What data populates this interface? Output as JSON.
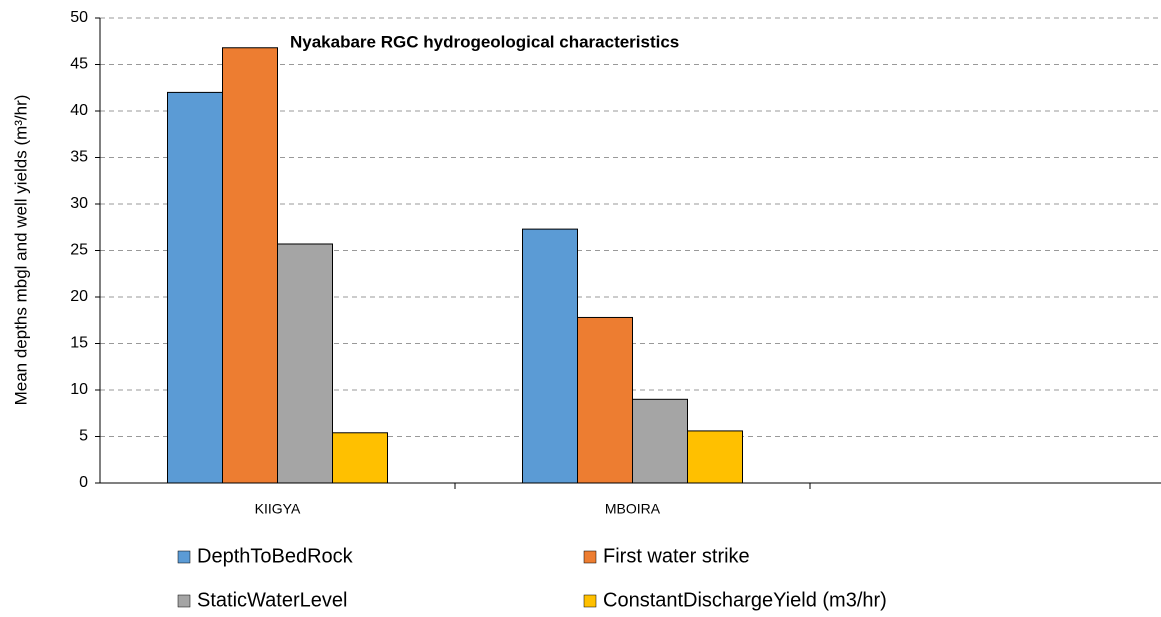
{
  "chart_data": {
    "type": "bar",
    "title": "Nyakabare RGC hydrogeological characteristics",
    "y_label": "Mean depths mbgl and well yields (m³/hr)",
    "categories": [
      "KIIGYA",
      "MBOIRA",
      null
    ],
    "series": [
      {
        "name": "DepthToBedRock",
        "color": "#5b9bd5",
        "values": [
          42,
          27.3,
          null
        ]
      },
      {
        "name": "First water strike",
        "color": "#ed7d31",
        "values": [
          46.8,
          17.8,
          null
        ]
      },
      {
        "name": "StaticWaterLevel",
        "color": "#a5a5a5",
        "values": [
          25.7,
          9,
          null
        ]
      },
      {
        "name": "ConstantDischargeYield (m3/hr)",
        "color": "#ffc000",
        "values": [
          5.4,
          5.6,
          null
        ]
      }
    ],
    "ylim": [
      0,
      50
    ],
    "yticks": [
      0,
      5,
      10,
      15,
      20,
      25,
      30,
      35,
      40,
      45,
      50
    ],
    "grid": true
  }
}
